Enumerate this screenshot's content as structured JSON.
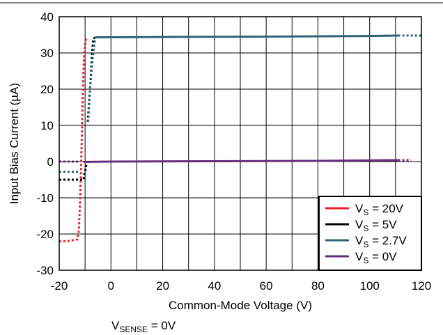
{
  "chart_data": {
    "type": "line",
    "xlabel": "Common-Mode Voltage (V)",
    "ylabel_pre": "Input Bias Current (",
    "ylabel_mu": "µ",
    "ylabel_post": "A)",
    "xlim": [
      -20,
      120
    ],
    "ylim": [
      -30,
      40
    ],
    "xticks": [
      -20,
      0,
      20,
      40,
      60,
      80,
      100,
      120
    ],
    "yticks": [
      -30,
      -20,
      -10,
      0,
      10,
      20,
      30,
      40
    ],
    "xtick_labels": [
      "-20",
      "0",
      "20",
      "40",
      "60",
      "80",
      "100",
      "120"
    ],
    "ytick_labels": [
      "-30",
      "-20",
      "-10",
      "0",
      "10",
      "20",
      "30",
      "40"
    ],
    "grid": true,
    "legend_position": "bottom-right",
    "footnote": {
      "main": "V",
      "sub": "SENSE",
      "post": " = 0V"
    },
    "series": [
      {
        "name": "V_S = 20V",
        "legend": {
          "main": "V",
          "sub": "S",
          "post": " = 20V"
        },
        "color": "#ee1c25",
        "segments": [
          {
            "style": "dotted",
            "points": [
              [
                -20,
                -22
              ],
              [
                -17,
                -22
              ],
              [
                -13,
                -21.5
              ],
              [
                -12.4,
                -19
              ],
              [
                -12,
                -12
              ],
              [
                -11.5,
                0
              ],
              [
                -11,
                15
              ],
              [
                -10.5,
                28
              ],
              [
                -9.8,
                33.5
              ],
              [
                -9,
                34.2
              ]
            ]
          }
        ]
      },
      {
        "name": "V_S = 5V",
        "legend": {
          "main": "V",
          "sub": "S",
          "post": " = 5V"
        },
        "color": "#000000",
        "segments": [
          {
            "style": "dotted",
            "points": [
              [
                -20,
                -5
              ],
              [
                -17,
                -5
              ],
              [
                -10.5,
                -5
              ],
              [
                -10.5,
                -4.3
              ],
              [
                -9.5,
                -1
              ],
              [
                -9,
                0
              ]
            ]
          },
          {
            "style": "dotted",
            "points": [
              [
                -9,
                11
              ],
              [
                -8,
                21
              ],
              [
                -7.3,
                30
              ],
              [
                -6.8,
                34
              ],
              [
                -6,
                34.3
              ]
            ]
          }
        ]
      },
      {
        "name": "V_S = 2.7V",
        "legend": {
          "main": "V",
          "sub": "S",
          "post": " = 2.7V"
        },
        "color": "#2e6377",
        "segments": [
          {
            "style": "dotted",
            "points": [
              [
                -20,
                -2.8
              ],
              [
                -17,
                -2.8
              ],
              [
                -12,
                -2.8
              ]
            ]
          },
          {
            "style": "dotted",
            "points": [
              [
                -8.8,
                11
              ],
              [
                -8,
                21
              ],
              [
                -7,
                29
              ],
              [
                -6,
                34.3
              ]
            ]
          },
          {
            "style": "solid",
            "points": [
              [
                -6,
                34.3
              ],
              [
                20,
                34.4
              ],
              [
                60,
                34.5
              ],
              [
                100,
                34.7
              ],
              [
                111,
                34.8
              ]
            ]
          },
          {
            "style": "dotted",
            "points": [
              [
                111,
                34.8
              ],
              [
                116,
                34.8
              ],
              [
                120,
                34.8
              ]
            ]
          }
        ]
      },
      {
        "name": "V_S = 0V",
        "legend": {
          "main": "V",
          "sub": "S",
          "post": " = 0V"
        },
        "color": "#6a2c7e",
        "segments": [
          {
            "style": "dotted",
            "points": [
              [
                -20,
                0
              ],
              [
                -12,
                0
              ]
            ]
          },
          {
            "style": "solid",
            "points": [
              [
                -10.5,
                -0.1
              ],
              [
                0,
                0
              ],
              [
                40,
                0.1
              ],
              [
                80,
                0.2
              ],
              [
                111,
                0.4
              ]
            ]
          },
          {
            "style": "dotted",
            "points": [
              [
                111,
                0.4
              ],
              [
                116,
                0.4
              ]
            ]
          }
        ]
      }
    ]
  }
}
